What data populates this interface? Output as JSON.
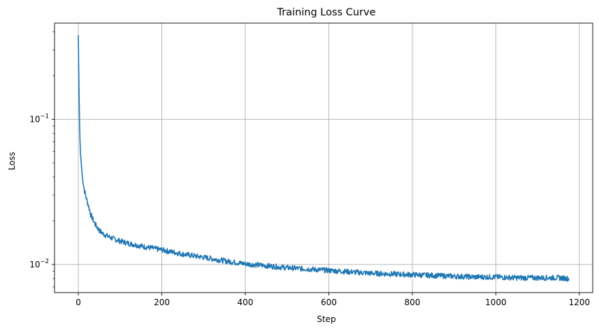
{
  "chart_data": {
    "type": "line",
    "title": "Training Loss Curve",
    "xlabel": "Step",
    "ylabel": "Loss",
    "xlim": [
      -57,
      1232
    ],
    "ylim": [
      0.0064,
      0.46
    ],
    "yscale": "log",
    "grid": true,
    "legend": "none",
    "x_ticks": [
      0,
      200,
      400,
      600,
      800,
      1000,
      1200
    ],
    "y_ticks": [
      {
        "value": 0.01,
        "base": "10",
        "exp": "−2"
      },
      {
        "value": 0.1,
        "base": "10",
        "exp": "−1"
      }
    ],
    "series": [
      {
        "color": "#1f77b4",
        "points": [
          [
            0,
            0.38
          ],
          [
            1,
            0.22
          ],
          [
            2,
            0.14
          ],
          [
            3,
            0.095
          ],
          [
            4,
            0.072
          ],
          [
            5,
            0.06
          ],
          [
            7,
            0.05
          ],
          [
            9,
            0.042
          ],
          [
            12,
            0.036
          ],
          [
            15,
            0.032
          ],
          [
            20,
            0.028
          ],
          [
            25,
            0.025
          ],
          [
            30,
            0.022
          ],
          [
            40,
            0.019
          ],
          [
            50,
            0.0172
          ],
          [
            60,
            0.0162
          ],
          [
            80,
            0.0152
          ],
          [
            100,
            0.0145
          ],
          [
            120,
            0.014
          ],
          [
            150,
            0.0134
          ],
          [
            200,
            0.0126
          ],
          [
            250,
            0.0118
          ],
          [
            300,
            0.0112
          ],
          [
            350,
            0.0106
          ],
          [
            400,
            0.0101
          ],
          [
            450,
            0.0098
          ],
          [
            500,
            0.0095
          ],
          [
            550,
            0.0093
          ],
          [
            600,
            0.0091
          ],
          [
            650,
            0.0089
          ],
          [
            700,
            0.0087
          ],
          [
            750,
            0.0086
          ],
          [
            800,
            0.0085
          ],
          [
            850,
            0.0084
          ],
          [
            900,
            0.0083
          ],
          [
            950,
            0.0082
          ],
          [
            1000,
            0.0082
          ],
          [
            1050,
            0.0081
          ],
          [
            1100,
            0.0081
          ],
          [
            1150,
            0.0081
          ],
          [
            1175,
            0.008
          ]
        ]
      }
    ]
  }
}
